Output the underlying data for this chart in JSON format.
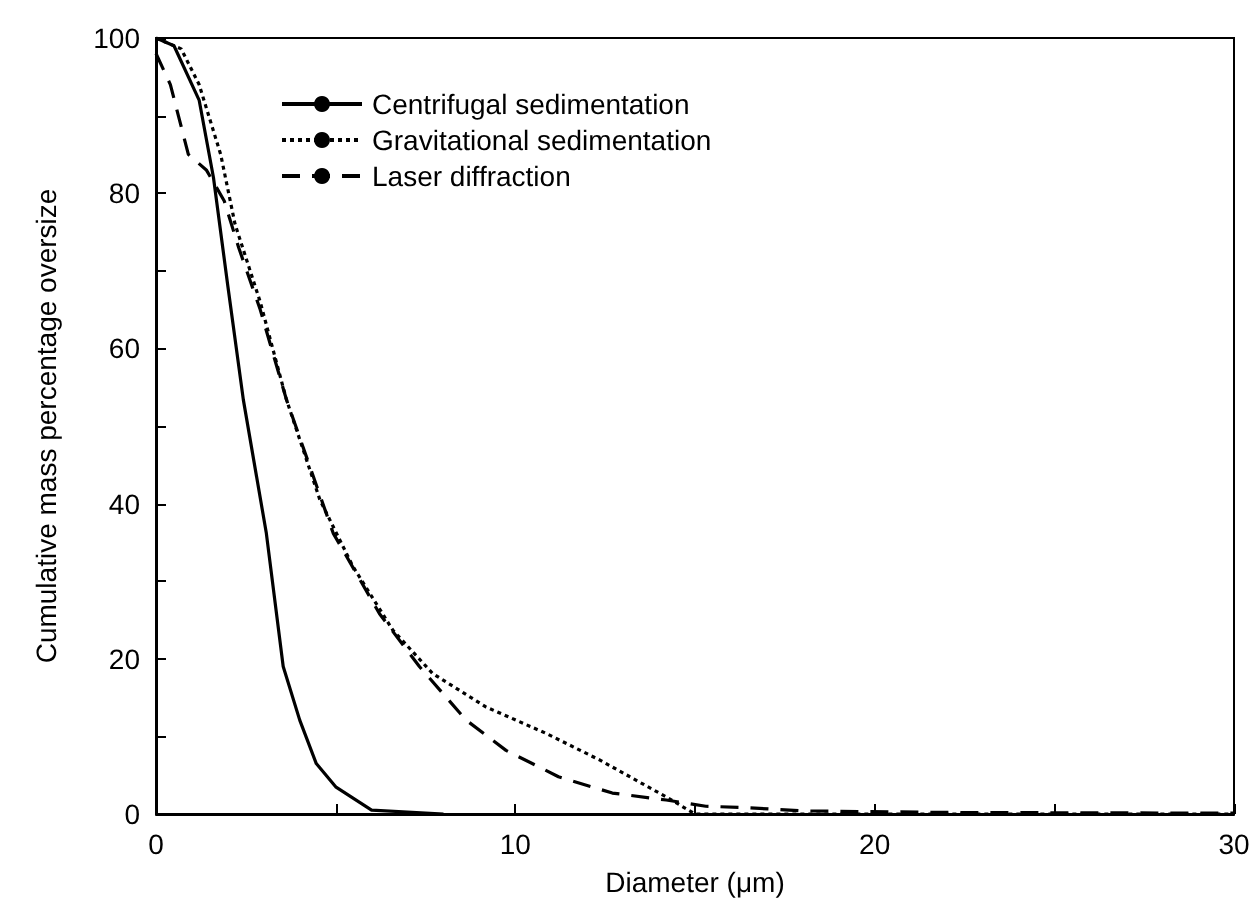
{
  "chart_data": {
    "type": "line",
    "xlabel": "Diameter (μm)",
    "ylabel": "Cumulative mass percentage oversize",
    "xlim": [
      0,
      30
    ],
    "xticks": [
      0,
      {
        "value": 5,
        "label": null
      },
      10,
      {
        "value": 15,
        "label": null
      },
      20,
      {
        "value": 25,
        "label": null
      },
      30
    ],
    "ylim": [
      0,
      100
    ],
    "yticks": [
      0,
      {
        "value": 10,
        "label": null
      },
      20,
      {
        "value": 30,
        "label": null
      },
      40,
      {
        "value": 50,
        "label": null
      },
      60,
      {
        "value": 70,
        "label": null
      },
      80,
      {
        "value": 90,
        "label": null
      },
      100
    ],
    "grid": false,
    "legend": "top left",
    "marker": "none",
    "series": [
      {
        "name": "Centrifugal sedimentation",
        "color": "#000000",
        "line_style": "solid",
        "x": [
          0,
          0.5,
          1.2,
          1.6,
          2.0,
          2.43,
          3.07,
          3.54,
          4.0,
          4.46,
          5.0,
          6.0,
          8.0
        ],
        "values": [
          100,
          99,
          92,
          82,
          68,
          53.4,
          36.2,
          19,
          12.1,
          6.5,
          3.5,
          0.5,
          0
        ]
      },
      {
        "name": "Gravitational sedimentation",
        "color": "#000000",
        "line_style": "dotted",
        "x": [
          0,
          0.7,
          1.2,
          1.8,
          2.2,
          2.9,
          3.63,
          4.56,
          5.48,
          6.59,
          7.7,
          9.18,
          10.85,
          12.33,
          14.2,
          15.0,
          20,
          25,
          30
        ],
        "values": [
          100,
          98.6,
          94,
          85,
          76,
          66,
          53.4,
          40.5,
          31.9,
          23.7,
          18.1,
          13.8,
          10.4,
          7,
          2.2,
          0,
          0,
          0,
          0
        ]
      },
      {
        "name": "Laser diffraction",
        "color": "#000000",
        "line_style": "dashed",
        "x": [
          0,
          0.4,
          0.9,
          1.4,
          1.9,
          2.3,
          2.9,
          3.63,
          4.93,
          6.22,
          7.33,
          8.63,
          9.74,
          11.2,
          12.7,
          14.2,
          15.3,
          16.5,
          18,
          22,
          30
        ],
        "values": [
          98,
          94,
          85,
          83,
          79,
          73,
          65,
          53.4,
          36.2,
          25.8,
          19,
          12.1,
          8.2,
          4.8,
          2.7,
          1.8,
          1.0,
          0.8,
          0.4,
          0.2,
          0.1
        ]
      }
    ]
  }
}
